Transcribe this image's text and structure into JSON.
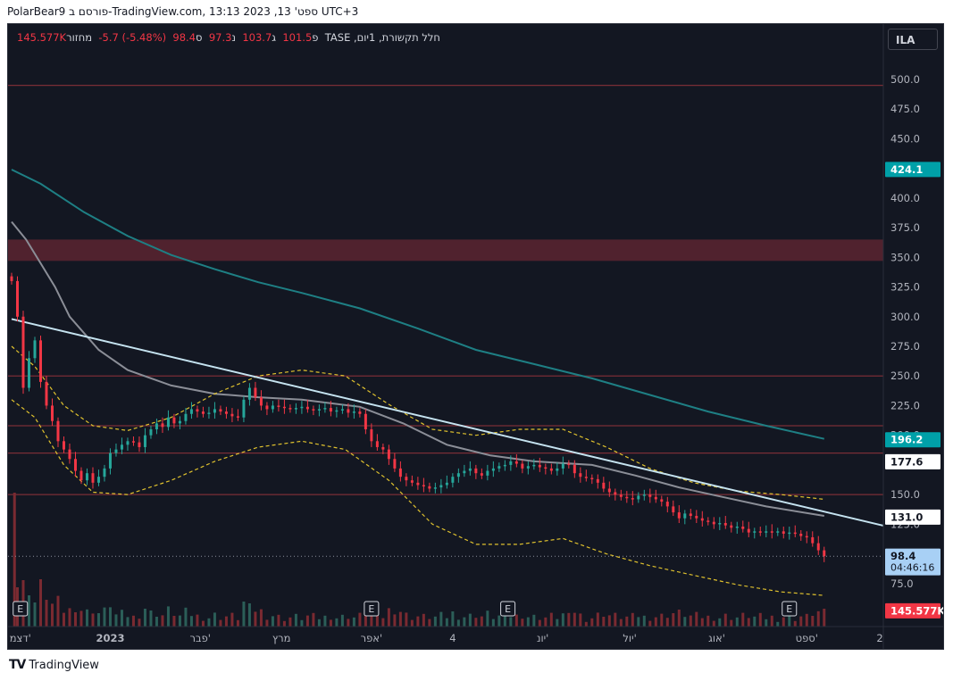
{
  "header": {
    "title": "PolarBear9 פורסם ב-TradingView.com, 13:13 2023 ,13 'ספט UTC+3"
  },
  "symbol_button": "ILA",
  "legend": {
    "name": "חלל תקשורת, 1יום, TASE",
    "open_label": "פ",
    "open": "101.5",
    "high_label": "ג",
    "high": "103.7",
    "low_label": "נ",
    "low": "97.3",
    "close_label": "ס",
    "close": "98.4",
    "change": "-5.7 (-5.48%)",
    "volume_label": "מחזור",
    "volume": "145.577K"
  },
  "footer": {
    "logo": "TV",
    "brand": "TradingView"
  },
  "colors": {
    "background": "#131722",
    "up": "#26a69a",
    "down": "#f23645",
    "teal_ma": "#1e7f84",
    "gray_ma": "#8b8e97",
    "trendline": "#c5e3f0",
    "envelope": "#e0c22e",
    "hline": "#7a2e36",
    "zone": "#5c2530",
    "volume_up": "#2b5e58",
    "volume_down": "#7a2a31"
  },
  "chart_data": {
    "type": "candlestick",
    "exchange": "TASE",
    "interval": "1D",
    "y_axis": {
      "ticks": [
        500.0,
        475.0,
        450.0,
        425.0,
        400.0,
        375.0,
        350.0,
        325.0,
        300.0,
        275.0,
        250.0,
        225.0,
        200.0,
        175.0,
        150.0,
        125.0,
        100.0,
        75.0,
        50.0
      ],
      "ylim": [
        45,
        515
      ],
      "labels": [
        {
          "value": 424.1,
          "text": "424.1",
          "bg": "#00a0a8",
          "color": "#ffffff"
        },
        {
          "value": 196.2,
          "text": "196.2",
          "bg": "#00a0a8",
          "color": "#ffffff"
        },
        {
          "value": 177.6,
          "text": "177.6",
          "bg": "#ffffff",
          "color": "#131722"
        },
        {
          "value": 131.0,
          "text": "131.0",
          "bg": "#ffffff",
          "color": "#131722"
        },
        {
          "value": 98.4,
          "text": "98.4",
          "bg": "#a8d0f5",
          "color": "#131722",
          "sub": "04:46:16"
        },
        {
          "value": 52.0,
          "text": "145.577K",
          "bg": "#f23645",
          "color": "#ffffff"
        }
      ]
    },
    "x_axis": {
      "day_range": [
        0,
        285
      ],
      "ticks": [
        {
          "day": 3,
          "label": "דצמ'"
        },
        {
          "day": 34,
          "label": "2023"
        },
        {
          "day": 65,
          "label": "פבר'"
        },
        {
          "day": 93,
          "label": "מרץ"
        },
        {
          "day": 124,
          "label": "אפר'"
        },
        {
          "day": 152,
          "label": "4"
        },
        {
          "day": 183,
          "label": "יונ'"
        },
        {
          "day": 213,
          "label": "יול'"
        },
        {
          "day": 243,
          "label": "אוג'"
        },
        {
          "day": 274,
          "label": "ספט'"
        },
        {
          "day": 304,
          "label": "2"
        }
      ]
    },
    "horizontal_lines": [
      495,
      250,
      208,
      185,
      150
    ],
    "resistance_zone": [
      347,
      365
    ],
    "earnings_markers": [
      {
        "day": 3,
        "label": "E"
      },
      {
        "day": 124,
        "label": "E"
      },
      {
        "day": 171,
        "label": "E"
      },
      {
        "day": 268,
        "label": "E"
      }
    ],
    "trendline": {
      "from": {
        "day": 0,
        "value": 298
      },
      "to": {
        "day": 300,
        "value": 124
      }
    },
    "moving_average_long": [
      [
        0,
        424
      ],
      [
        10,
        412
      ],
      [
        25,
        388
      ],
      [
        40,
        368
      ],
      [
        55,
        352
      ],
      [
        70,
        340
      ],
      [
        85,
        329
      ],
      [
        100,
        320
      ],
      [
        120,
        307
      ],
      [
        140,
        290
      ],
      [
        160,
        272
      ],
      [
        180,
        260
      ],
      [
        200,
        248
      ],
      [
        220,
        234
      ],
      [
        240,
        220
      ],
      [
        260,
        208
      ],
      [
        280,
        197
      ]
    ],
    "moving_average_short": [
      [
        0,
        380
      ],
      [
        5,
        365
      ],
      [
        10,
        345
      ],
      [
        15,
        325
      ],
      [
        20,
        300
      ],
      [
        30,
        272
      ],
      [
        40,
        255
      ],
      [
        55,
        242
      ],
      [
        70,
        235
      ],
      [
        85,
        232
      ],
      [
        100,
        230
      ],
      [
        120,
        224
      ],
      [
        135,
        210
      ],
      [
        150,
        192
      ],
      [
        165,
        183
      ],
      [
        180,
        178
      ],
      [
        200,
        175
      ],
      [
        215,
        166
      ],
      [
        230,
        156
      ],
      [
        245,
        148
      ],
      [
        260,
        140
      ],
      [
        280,
        132
      ]
    ],
    "envelope_upper": [
      [
        0,
        275
      ],
      [
        8,
        258
      ],
      [
        18,
        225
      ],
      [
        28,
        208
      ],
      [
        40,
        204
      ],
      [
        55,
        215
      ],
      [
        70,
        235
      ],
      [
        85,
        250
      ],
      [
        100,
        255
      ],
      [
        115,
        250
      ],
      [
        130,
        226
      ],
      [
        145,
        205
      ],
      [
        160,
        200
      ],
      [
        175,
        205
      ],
      [
        190,
        205
      ],
      [
        205,
        190
      ],
      [
        220,
        172
      ],
      [
        235,
        160
      ],
      [
        250,
        153
      ],
      [
        265,
        150
      ],
      [
        280,
        146
      ]
    ],
    "envelope_lower": [
      [
        0,
        230
      ],
      [
        8,
        215
      ],
      [
        18,
        175
      ],
      [
        28,
        152
      ],
      [
        40,
        150
      ],
      [
        55,
        162
      ],
      [
        70,
        178
      ],
      [
        85,
        190
      ],
      [
        100,
        195
      ],
      [
        115,
        188
      ],
      [
        130,
        162
      ],
      [
        145,
        125
      ],
      [
        160,
        108
      ],
      [
        175,
        108
      ],
      [
        190,
        113
      ],
      [
        205,
        100
      ],
      [
        220,
        90
      ],
      [
        235,
        82
      ],
      [
        250,
        74
      ],
      [
        265,
        68
      ],
      [
        280,
        65
      ]
    ],
    "ohlc_close": [
      [
        0,
        330
      ],
      [
        2,
        300
      ],
      [
        4,
        240
      ],
      [
        6,
        265
      ],
      [
        8,
        280
      ],
      [
        10,
        245
      ],
      [
        12,
        225
      ],
      [
        14,
        212
      ],
      [
        16,
        195
      ],
      [
        18,
        188
      ],
      [
        20,
        180
      ],
      [
        22,
        170
      ],
      [
        24,
        162
      ],
      [
        26,
        168
      ],
      [
        28,
        160
      ],
      [
        30,
        165
      ],
      [
        32,
        172
      ],
      [
        34,
        185
      ],
      [
        36,
        188
      ],
      [
        38,
        192
      ],
      [
        40,
        195
      ],
      [
        42,
        194
      ],
      [
        44,
        190
      ],
      [
        46,
        200
      ],
      [
        48,
        205
      ],
      [
        50,
        210
      ],
      [
        52,
        207
      ],
      [
        54,
        215
      ],
      [
        56,
        210
      ],
      [
        58,
        212
      ],
      [
        60,
        218
      ],
      [
        62,
        222
      ],
      [
        64,
        220
      ],
      [
        66,
        218
      ],
      [
        68,
        219
      ],
      [
        70,
        222
      ],
      [
        72,
        220
      ],
      [
        74,
        218
      ],
      [
        76,
        216
      ],
      [
        78,
        215
      ],
      [
        80,
        230
      ],
      [
        82,
        240
      ],
      [
        84,
        232
      ],
      [
        86,
        225
      ],
      [
        88,
        222
      ],
      [
        90,
        225
      ],
      [
        92,
        224
      ],
      [
        94,
        223
      ],
      [
        96,
        222
      ],
      [
        98,
        223
      ],
      [
        100,
        224
      ],
      [
        102,
        222
      ],
      [
        104,
        221
      ],
      [
        106,
        222
      ],
      [
        108,
        223
      ],
      [
        110,
        220
      ],
      [
        112,
        221
      ],
      [
        114,
        222
      ],
      [
        116,
        219
      ],
      [
        118,
        220
      ],
      [
        120,
        218
      ],
      [
        122,
        205
      ],
      [
        124,
        195
      ],
      [
        126,
        190
      ],
      [
        128,
        188
      ],
      [
        130,
        180
      ],
      [
        132,
        172
      ],
      [
        134,
        165
      ],
      [
        136,
        162
      ],
      [
        138,
        160
      ],
      [
        140,
        158
      ],
      [
        142,
        157
      ],
      [
        144,
        155
      ],
      [
        146,
        156
      ],
      [
        148,
        158
      ],
      [
        150,
        160
      ],
      [
        152,
        165
      ],
      [
        154,
        168
      ],
      [
        156,
        170
      ],
      [
        158,
        172
      ],
      [
        160,
        168
      ],
      [
        162,
        166
      ],
      [
        164,
        170
      ],
      [
        166,
        172
      ],
      [
        168,
        174
      ],
      [
        170,
        175
      ],
      [
        172,
        178
      ],
      [
        174,
        176
      ],
      [
        176,
        172
      ],
      [
        178,
        174
      ],
      [
        180,
        175
      ],
      [
        182,
        173
      ],
      [
        184,
        172
      ],
      [
        186,
        170
      ],
      [
        188,
        172
      ],
      [
        190,
        176
      ],
      [
        192,
        175
      ],
      [
        194,
        168
      ],
      [
        196,
        165
      ],
      [
        198,
        164
      ],
      [
        200,
        163
      ],
      [
        202,
        160
      ],
      [
        204,
        155
      ],
      [
        206,
        152
      ],
      [
        208,
        150
      ],
      [
        210,
        148
      ],
      [
        212,
        147
      ],
      [
        214,
        146
      ],
      [
        216,
        149
      ],
      [
        218,
        150
      ],
      [
        220,
        148
      ],
      [
        222,
        146
      ],
      [
        224,
        144
      ],
      [
        226,
        140
      ],
      [
        228,
        135
      ],
      [
        230,
        130
      ],
      [
        232,
        134
      ],
      [
        234,
        132
      ],
      [
        236,
        130
      ],
      [
        238,
        128
      ],
      [
        240,
        127
      ],
      [
        242,
        125
      ],
      [
        244,
        126
      ],
      [
        246,
        124
      ],
      [
        248,
        122
      ],
      [
        250,
        123
      ],
      [
        252,
        121
      ],
      [
        254,
        118
      ],
      [
        256,
        119
      ],
      [
        258,
        118
      ],
      [
        260,
        119
      ],
      [
        262,
        118
      ],
      [
        264,
        119
      ],
      [
        266,
        117
      ],
      [
        268,
        118
      ],
      [
        270,
        117
      ],
      [
        272,
        115
      ],
      [
        274,
        114
      ],
      [
        276,
        109
      ],
      [
        278,
        103
      ],
      [
        280,
        98
      ]
    ]
  }
}
